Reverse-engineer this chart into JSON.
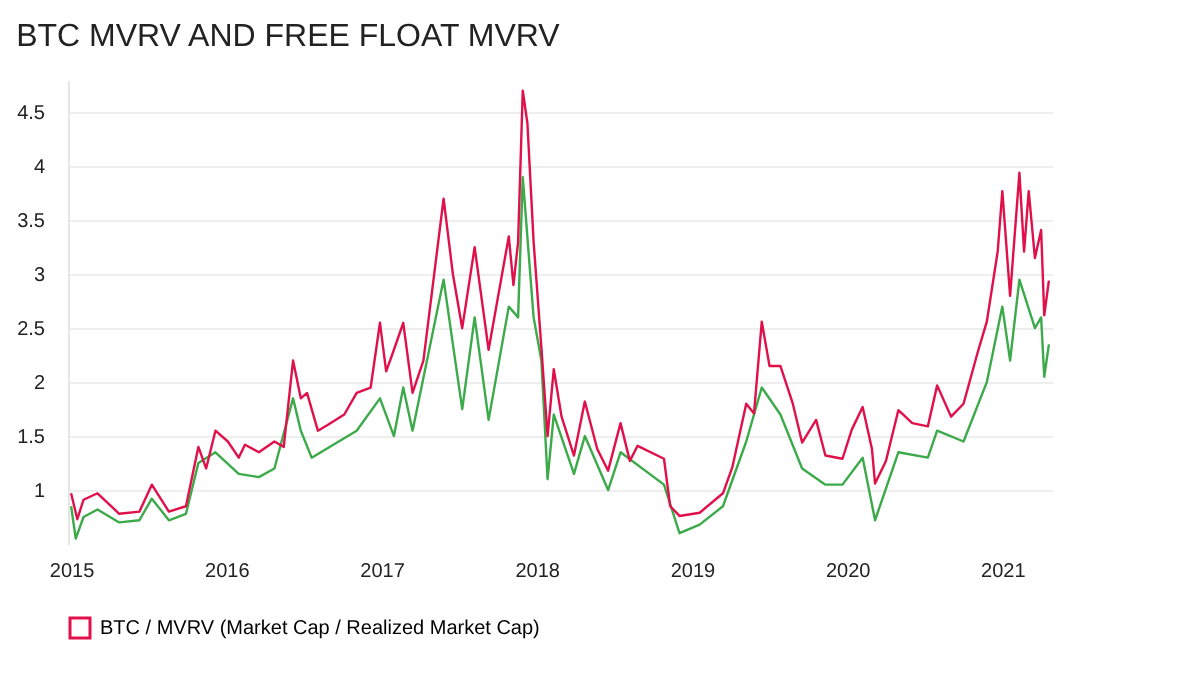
{
  "chart_data": {
    "type": "line",
    "title": "BTC MVRV AND FREE FLOAT MVRV",
    "xlim": [
      2014.98,
      2021.32
    ],
    "xticks": [
      2015,
      2016,
      2017,
      2018,
      2019,
      2020,
      2021
    ],
    "ylim": [
      0.5,
      4.8
    ],
    "yticks": [
      1,
      1.5,
      2,
      2.5,
      3,
      3.5,
      4,
      4.5
    ],
    "grid": "y",
    "legend": "bottom",
    "line_style": "solid",
    "marker": "none",
    "series": [
      {
        "name": "BTC / MVRV (Market Cap / Realized Market Cap)",
        "color": "#e0104a",
        "x": [
          2015.0,
          2015.04,
          2015.08,
          2015.17,
          2015.31,
          2015.44,
          2015.52,
          2015.63,
          2015.74,
          2015.82,
          2015.87,
          2015.93,
          2016.01,
          2016.08,
          2016.12,
          2016.21,
          2016.31,
          2016.37,
          2016.43,
          2016.48,
          2016.52,
          2016.55,
          2016.59,
          2016.65,
          2016.76,
          2016.84,
          2016.93,
          2016.99,
          2017.03,
          2017.08,
          2017.14,
          2017.2,
          2017.27,
          2017.4,
          2017.46,
          2017.52,
          2017.6,
          2017.69,
          2017.82,
          2017.85,
          2017.88,
          2017.91,
          2017.94,
          2017.98,
          2018.03,
          2018.07,
          2018.11,
          2018.16,
          2018.24,
          2018.31,
          2018.39,
          2018.46,
          2018.54,
          2018.6,
          2018.65,
          2018.82,
          2018.86,
          2018.92,
          2019.05,
          2019.2,
          2019.26,
          2019.35,
          2019.4,
          2019.45,
          2019.5,
          2019.57,
          2019.65,
          2019.71,
          2019.8,
          2019.86,
          2019.97,
          2020.03,
          2020.1,
          2020.16,
          2020.18,
          2020.25,
          2020.33,
          2020.42,
          2020.52,
          2020.58,
          2020.67,
          2020.75,
          2020.84,
          2020.9,
          2020.97,
          2021.0,
          2021.05,
          2021.11,
          2021.14,
          2021.17,
          2021.21,
          2021.25,
          2021.27,
          2021.3
        ],
        "values": [
          0.97,
          0.73,
          0.91,
          0.97,
          0.78,
          0.8,
          1.05,
          0.8,
          0.85,
          1.4,
          1.2,
          1.55,
          1.45,
          1.3,
          1.42,
          1.35,
          1.45,
          1.4,
          2.2,
          1.85,
          1.9,
          1.75,
          1.55,
          1.6,
          1.7,
          1.9,
          1.95,
          2.55,
          2.1,
          2.3,
          2.55,
          1.9,
          2.2,
          3.7,
          3.0,
          2.5,
          3.25,
          2.3,
          3.35,
          2.9,
          3.3,
          4.7,
          4.4,
          3.3,
          2.32,
          1.5,
          2.12,
          1.68,
          1.32,
          1.82,
          1.38,
          1.18,
          1.62,
          1.27,
          1.41,
          1.29,
          0.85,
          0.76,
          0.79,
          0.97,
          1.21,
          1.8,
          1.71,
          2.56,
          2.15,
          2.15,
          1.8,
          1.44,
          1.65,
          1.32,
          1.29,
          1.56,
          1.77,
          1.38,
          1.06,
          1.27,
          1.74,
          1.62,
          1.59,
          1.97,
          1.68,
          1.8,
          2.27,
          2.56,
          3.21,
          3.77,
          2.8,
          3.94,
          3.21,
          3.77,
          3.15,
          3.41,
          2.62,
          2.94
        ]
      },
      {
        "color": "#3caa4a",
        "x": [
          2015.0,
          2015.03,
          2015.08,
          2015.17,
          2015.31,
          2015.44,
          2015.52,
          2015.63,
          2015.74,
          2015.82,
          2015.93,
          2016.08,
          2016.21,
          2016.31,
          2016.43,
          2016.48,
          2016.55,
          2016.84,
          2016.99,
          2017.08,
          2017.14,
          2017.2,
          2017.4,
          2017.52,
          2017.6,
          2017.69,
          2017.82,
          2017.88,
          2017.91,
          2017.98,
          2018.03,
          2018.07,
          2018.11,
          2018.24,
          2018.31,
          2018.46,
          2018.54,
          2018.82,
          2018.92,
          2019.05,
          2019.2,
          2019.35,
          2019.45,
          2019.57,
          2019.71,
          2019.86,
          2019.97,
          2020.1,
          2020.18,
          2020.33,
          2020.52,
          2020.58,
          2020.75,
          2020.9,
          2021.0,
          2021.05,
          2021.11,
          2021.21,
          2021.25,
          2021.27,
          2021.3
        ],
        "values": [
          0.85,
          0.55,
          0.75,
          0.82,
          0.7,
          0.72,
          0.92,
          0.72,
          0.78,
          1.25,
          1.35,
          1.15,
          1.12,
          1.2,
          1.85,
          1.55,
          1.3,
          1.55,
          1.85,
          1.5,
          1.95,
          1.55,
          2.95,
          1.75,
          2.6,
          1.65,
          2.7,
          2.6,
          3.9,
          2.6,
          2.2,
          1.1,
          1.7,
          1.15,
          1.5,
          1.0,
          1.35,
          1.05,
          0.6,
          0.68,
          0.85,
          1.45,
          1.95,
          1.7,
          1.2,
          1.05,
          1.05,
          1.3,
          0.72,
          1.35,
          1.3,
          1.55,
          1.45,
          2.0,
          2.7,
          2.2,
          2.95,
          2.5,
          2.6,
          2.05,
          2.35
        ]
      }
    ]
  }
}
